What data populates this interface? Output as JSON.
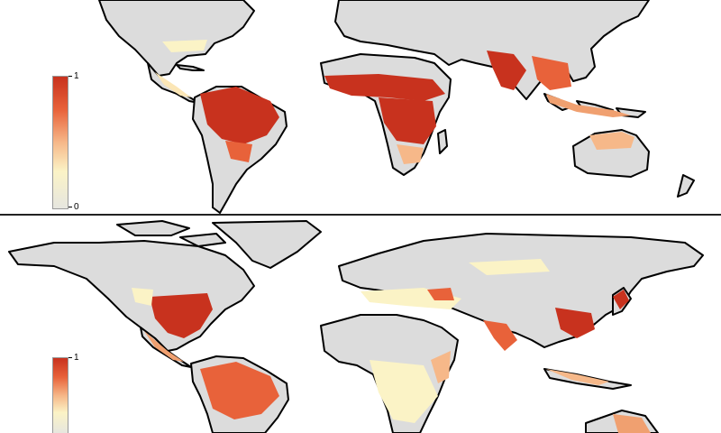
{
  "colors": {
    "land": "#dcdcdc",
    "border": "#000000",
    "high": "#c8321e",
    "mid": "#f6b889",
    "low": "#fbf3c6"
  },
  "panels": [
    {
      "legend": {
        "max_label": "1",
        "min_label": "0"
      }
    },
    {
      "legend": {
        "max_label": "1",
        "min_label": ""
      }
    }
  ]
}
